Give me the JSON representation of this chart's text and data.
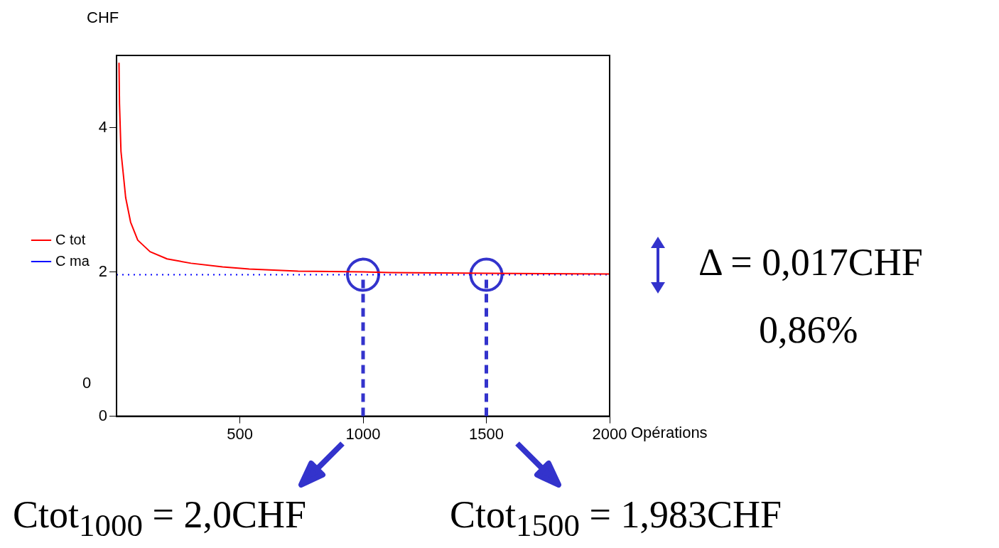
{
  "chart_data": {
    "type": "line",
    "xlabel": "Opérations",
    "ylabel": "CHF",
    "xlim": [
      0,
      2000
    ],
    "xticks": [
      500,
      1000,
      1500,
      2000
    ],
    "ylim": [
      0,
      5
    ],
    "yticks": [
      0,
      2,
      4
    ],
    "grid": false,
    "legend": "left",
    "series": [
      {
        "name": "C tot",
        "color": "#ff0000",
        "line_style": "solid",
        "marker": "none",
        "x": [
          10,
          12,
          18,
          27,
          37,
          57,
          86,
          136,
          205,
          302,
          430,
          538,
          736,
          1000,
          1107,
          1500,
          2000
        ],
        "values": [
          4.9,
          4.33,
          3.67,
          3.37,
          3.03,
          2.69,
          2.44,
          2.28,
          2.18,
          2.12,
          2.07,
          2.04,
          2.01,
          2.0,
          1.99,
          1.98,
          1.97
        ]
      },
      {
        "name": "C ma",
        "color": "#0000ff",
        "line_style": "dotted",
        "marker": "none",
        "x": [
          0,
          2000
        ],
        "values": [
          1.96,
          1.96
        ]
      },
      {
        "type": "scatter",
        "color": "#3333cc",
        "marker": "circle",
        "x": [
          1000,
          1500
        ],
        "values": [
          1.96,
          1.96
        ]
      }
    ],
    "ref_lines": [
      {
        "axis": "x",
        "value": 1000,
        "color": "#3333cc",
        "line_style": "dashed"
      },
      {
        "axis": "x",
        "value": 1500,
        "color": "#3333cc",
        "line_style": "dashed"
      }
    ],
    "annotations": [
      "0",
      "Δ = 0,017CHF",
      "0,86%",
      "Ctot$_{1000}$ = 2,0CHF",
      "Ctot$_{1500}$ = 1,983CHF"
    ]
  }
}
